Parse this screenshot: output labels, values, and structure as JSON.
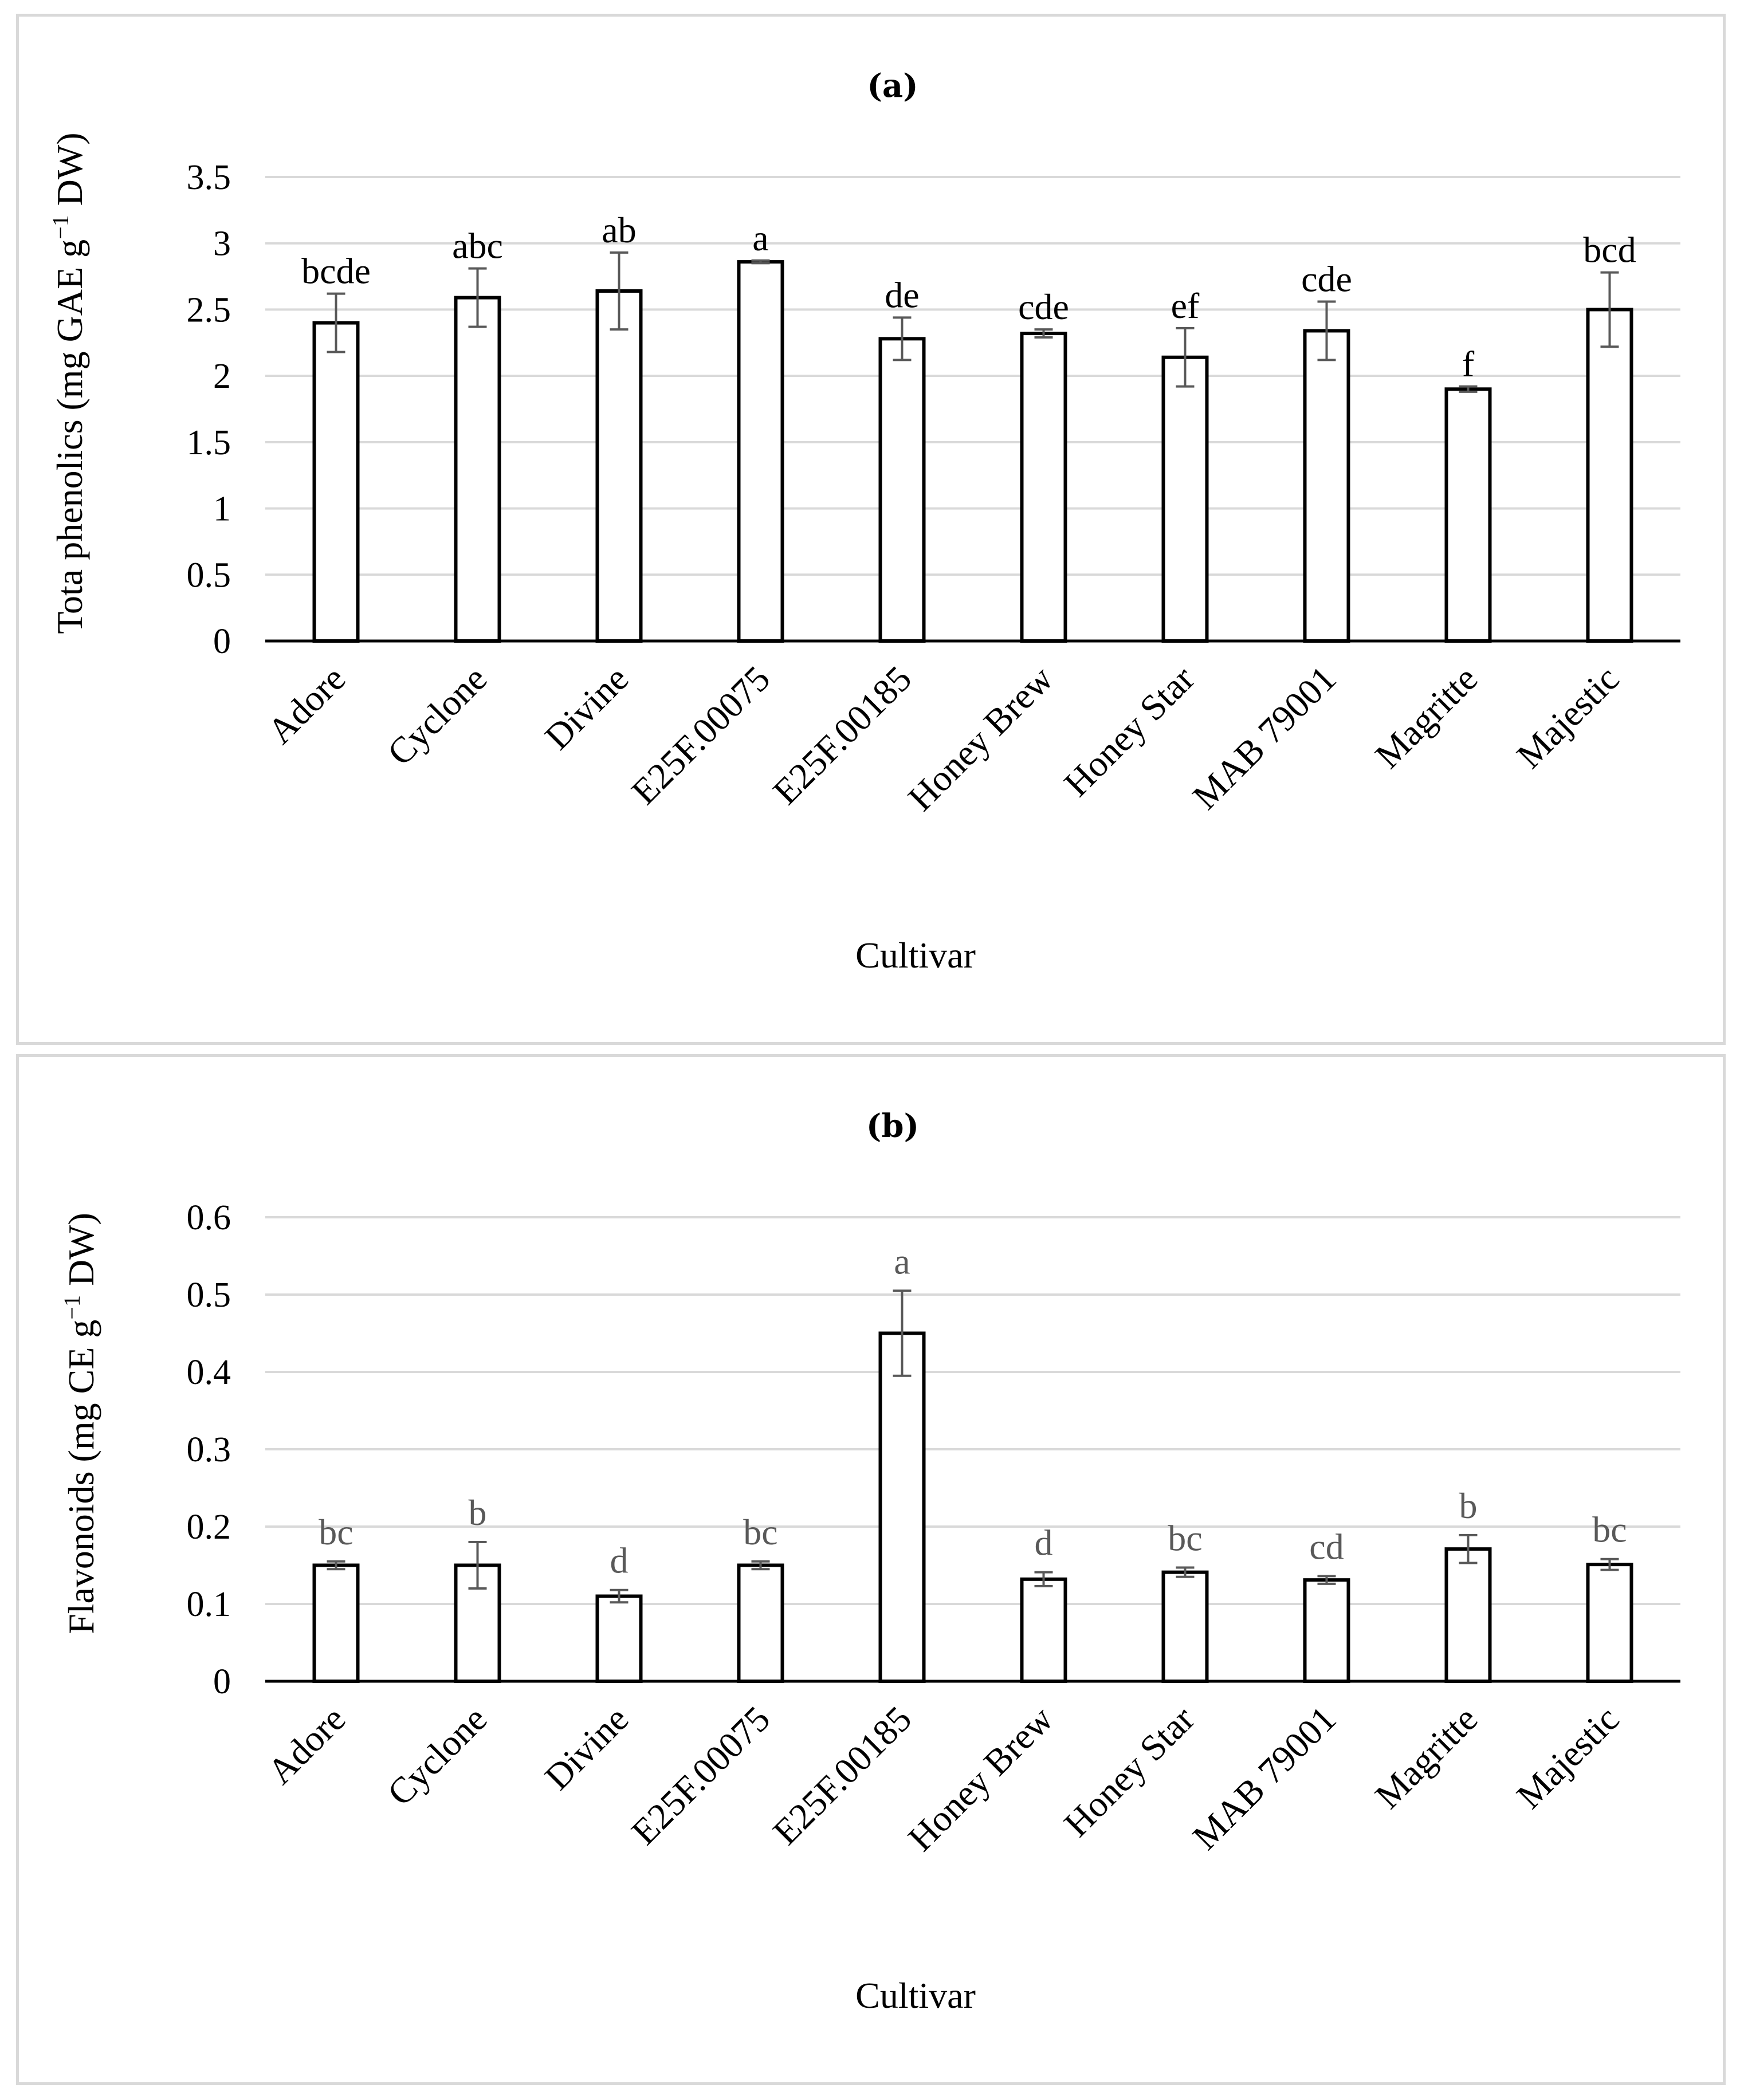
{
  "chart_data": [
    {
      "type": "bar",
      "panel_label": "(a)",
      "ylabel": "Tota phenolics (mg GAE g",
      "ylabel_sup": "−1",
      "ylabel_end": " DW)",
      "xlabel": "Cultivar",
      "categories": [
        "Adore",
        "Cyclone",
        "Divine",
        "E25F.00075",
        "E25F.00185",
        "Honey Brew",
        "Honey Star",
        "MAB 79001",
        "Magritte",
        "Majestic"
      ],
      "values": [
        2.4,
        2.59,
        2.64,
        2.86,
        2.28,
        2.32,
        2.14,
        2.34,
        1.9,
        2.5
      ],
      "errors": [
        0.22,
        0.22,
        0.29,
        0.01,
        0.16,
        0.03,
        0.22,
        0.22,
        0.02,
        0.28
      ],
      "letters": [
        "bcde",
        "abc",
        "ab",
        "a",
        "de",
        "cde",
        "ef",
        "cde",
        "f",
        "bcd"
      ],
      "ylim": [
        0,
        3.5
      ],
      "yticks": [
        "0",
        "0.5",
        "1",
        "1.5",
        "2",
        "2.5",
        "3",
        "3.5"
      ],
      "ytick_values": [
        0,
        0.5,
        1,
        1.5,
        2,
        2.5,
        3,
        3.5
      ],
      "grid": true
    },
    {
      "type": "bar",
      "panel_label": "(b)",
      "ylabel": "Flavonoids (mg CE g",
      "ylabel_sup": "−1",
      "ylabel_end": " DW)",
      "xlabel": "Cultivar",
      "categories": [
        "Adore",
        "Cyclone",
        "Divine",
        "E25F.00075",
        "E25F.00185",
        "Honey Brew",
        "Honey Star",
        "MAB 79001",
        "Magritte",
        "Majestic"
      ],
      "values": [
        0.15,
        0.15,
        0.11,
        0.15,
        0.45,
        0.132,
        0.141,
        0.131,
        0.171,
        0.151
      ],
      "errors": [
        0.005,
        0.03,
        0.008,
        0.005,
        0.055,
        0.009,
        0.006,
        0.005,
        0.018,
        0.007
      ],
      "letters": [
        "bc",
        "b",
        "d",
        "bc",
        "a",
        "d",
        "bc",
        "cd",
        "b",
        "bc"
      ],
      "ylim": [
        0,
        0.6
      ],
      "yticks": [
        "0",
        "0.1",
        "0.2",
        "0.3",
        "0.4",
        "0.5",
        "0.6"
      ],
      "ytick_values": [
        0,
        0.1,
        0.2,
        0.3,
        0.4,
        0.5,
        0.6
      ],
      "grid": true
    }
  ]
}
